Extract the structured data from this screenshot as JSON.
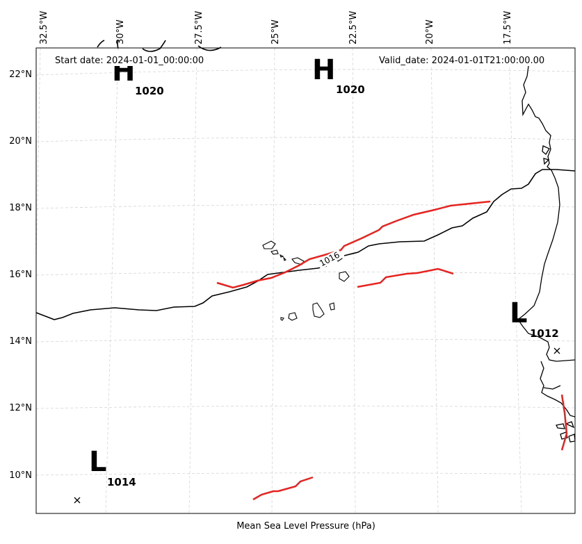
{
  "map": {
    "start_date_label": "Start date: 2024-01-01_00:00:00",
    "valid_date_label": "Valid_date: 2024-01-01T21:00:00.00",
    "xlabel": "Mean Sea Level Pressure (hPa)",
    "lon_ticks": [
      "32.5°W",
      "30°W",
      "27.5°W",
      "25°W",
      "22.5°W",
      "20°W",
      "17.5°W"
    ],
    "lat_ticks": [
      "22°N",
      "20°N",
      "18°N",
      "16°N",
      "14°N",
      "12°N",
      "10°N"
    ],
    "pressure_centers": [
      {
        "type": "H",
        "value": "1020"
      },
      {
        "type": "H",
        "value": "1020"
      },
      {
        "type": "L",
        "value": "1012"
      },
      {
        "type": "L",
        "value": "1014"
      }
    ],
    "contour_label": "1016",
    "colors": {
      "front": "#e8231f",
      "contour": "#000000",
      "coast": "#000000",
      "grid": "#cccccc"
    }
  }
}
